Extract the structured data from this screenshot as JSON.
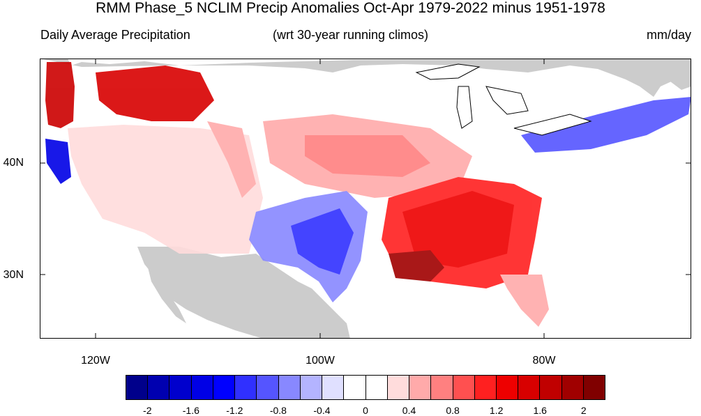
{
  "title": "RMM Phase_5 NCLIM Precip Anomalies Oct-Apr 1979-2022 minus 1951-1978",
  "subtitle_left": "Daily Average Precipitation",
  "subtitle_center": "(wrt 30-year running climos)",
  "subtitle_right": "mm/day",
  "lat_labels": [
    "40N",
    "30N"
  ],
  "lon_labels": [
    "120W",
    "100W",
    "80W"
  ],
  "colorbar": {
    "colors": [
      "#00008b",
      "#0000b0",
      "#0000cd",
      "#0000e6",
      "#0000ff",
      "#3030ff",
      "#5555ff",
      "#8888ff",
      "#b4b4ff",
      "#e0e0ff",
      "#ffffff",
      "#ffffff",
      "#ffdcdc",
      "#ffaaaa",
      "#ff8080",
      "#ff5050",
      "#ff2020",
      "#ee0000",
      "#d80000",
      "#c00000",
      "#a00000",
      "#800000"
    ],
    "labels": [
      "-2",
      "-1.6",
      "-1.2",
      "-0.8",
      "-0.4",
      "0",
      "0.4",
      "0.8",
      "1.2",
      "1.6",
      "2"
    ]
  },
  "colors": {
    "land_nodata": "#cccccc",
    "ocean": "#ffffff"
  }
}
